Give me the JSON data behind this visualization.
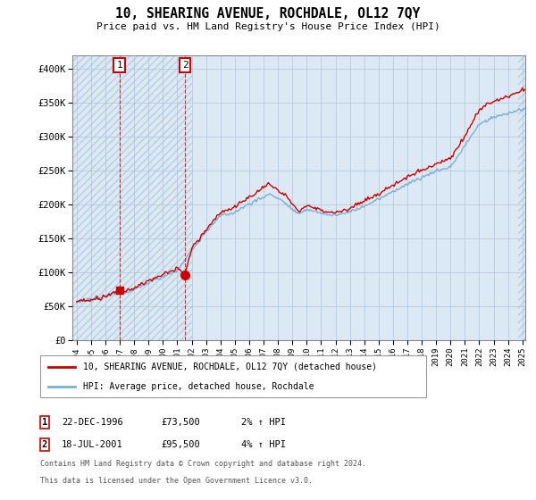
{
  "title": "10, SHEARING AVENUE, ROCHDALE, OL12 7QY",
  "subtitle": "Price paid vs. HM Land Registry's House Price Index (HPI)",
  "ylim": [
    0,
    420000
  ],
  "yticks": [
    0,
    50000,
    100000,
    150000,
    200000,
    250000,
    300000,
    350000,
    400000
  ],
  "ytick_labels": [
    "£0",
    "£50K",
    "£100K",
    "£150K",
    "£200K",
    "£250K",
    "£300K",
    "£350K",
    "£400K"
  ],
  "purchase1_year": 1996.97,
  "purchase1_price": 73500,
  "purchase2_year": 2001.54,
  "purchase2_price": 95500,
  "purchase1_date": "22-DEC-1996",
  "purchase1_amount": "£73,500",
  "purchase1_hpi": "2% ↑ HPI",
  "purchase2_date": "18-JUL-2001",
  "purchase2_amount": "£95,500",
  "purchase2_hpi": "4% ↑ HPI",
  "line_color_property": "#cc0000",
  "line_color_hpi": "#7bafd4",
  "marker_color": "#cc0000",
  "legend_property": "10, SHEARING AVENUE, ROCHDALE, OL12 7QY (detached house)",
  "legend_hpi": "HPI: Average price, detached house, Rochdale",
  "footer_line1": "Contains HM Land Registry data © Crown copyright and database right 2024.",
  "footer_line2": "This data is licensed under the Open Government Licence v3.0.",
  "bg_color": "#ffffff",
  "plot_bg_color": "#dce9f5",
  "grid_color": "#b0c4d8",
  "xmin": 1994.0,
  "xmax": 2025.2,
  "hatch_end_year": 2002.0,
  "hatch_start_year2": 2024.7
}
